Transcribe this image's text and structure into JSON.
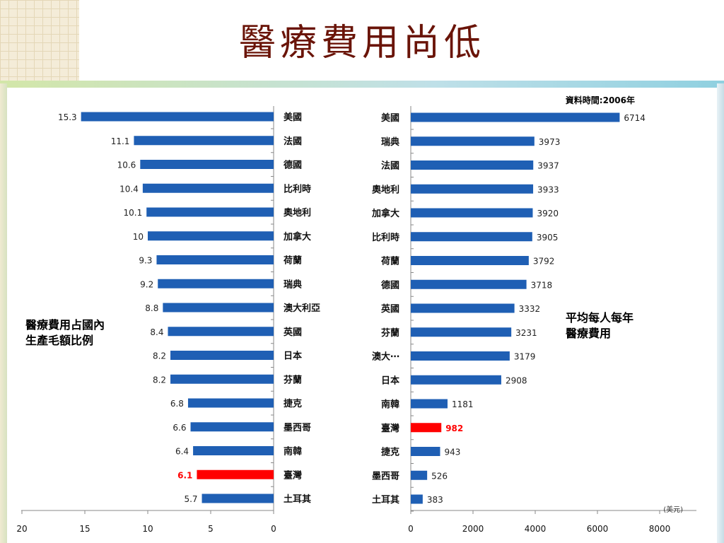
{
  "title": "醫療費用尚低",
  "chart_data": [
    {
      "type": "bar",
      "orientation": "horizontal",
      "direction": "right-to-left",
      "side_label": "醫療費用占國內\n生產毛額比例",
      "categories": [
        "美國",
        "法國",
        "德國",
        "比利時",
        "奧地利",
        "加拿大",
        "荷蘭",
        "瑞典",
        "澳大利亞",
        "英國",
        "日本",
        "芬蘭",
        "捷克",
        "墨西哥",
        "南韓",
        "臺灣",
        "土耳其"
      ],
      "values": [
        15.3,
        11.1,
        10.6,
        10.4,
        10.1,
        10,
        9.3,
        9.2,
        8.8,
        8.4,
        8.2,
        8.2,
        6.8,
        6.6,
        6.4,
        6.1,
        5.7
      ],
      "value_labels": [
        "15.3",
        "11.1",
        "10.6",
        "10.4",
        "10.1",
        "10",
        "9.3",
        "9.2",
        "8.8",
        "8.4",
        "8.2",
        "8.2",
        "6.8",
        "6.6",
        "6.4",
        "6.1",
        "5.7"
      ],
      "highlight": "臺灣",
      "xlim": [
        20,
        0
      ],
      "xticks": [
        "20",
        "15",
        "10",
        "5",
        "0"
      ],
      "bar_color": "#1f5fb4",
      "highlight_color": "#ff0000"
    },
    {
      "type": "bar",
      "orientation": "horizontal",
      "direction": "left-to-right",
      "note": "資料時間:2006年",
      "side_label": "平均每人每年\n醫療費用",
      "unit_label": "(美元)",
      "categories": [
        "美國",
        "瑞典",
        "法國",
        "奧地利",
        "加拿大",
        "比利時",
        "荷蘭",
        "德國",
        "英國",
        "芬蘭",
        "澳大⋯",
        "日本",
        "南韓",
        "臺灣",
        "捷克",
        "墨西哥",
        "土耳其"
      ],
      "values": [
        6714,
        3973,
        3937,
        3933,
        3920,
        3905,
        3792,
        3718,
        3332,
        3231,
        3179,
        2908,
        1181,
        982,
        943,
        526,
        383
      ],
      "value_labels": [
        "6714",
        "3973",
        "3937",
        "3933",
        "3920",
        "3905",
        "3792",
        "3718",
        "3332",
        "3231",
        "3179",
        "2908",
        "1181",
        "982",
        "943",
        "526",
        "383"
      ],
      "highlight": "臺灣",
      "xlim": [
        0,
        8000
      ],
      "xticks": [
        "0",
        "2000",
        "4000",
        "6000",
        "8000"
      ],
      "bar_color": "#1f5fb4",
      "highlight_color": "#ff0000"
    }
  ]
}
